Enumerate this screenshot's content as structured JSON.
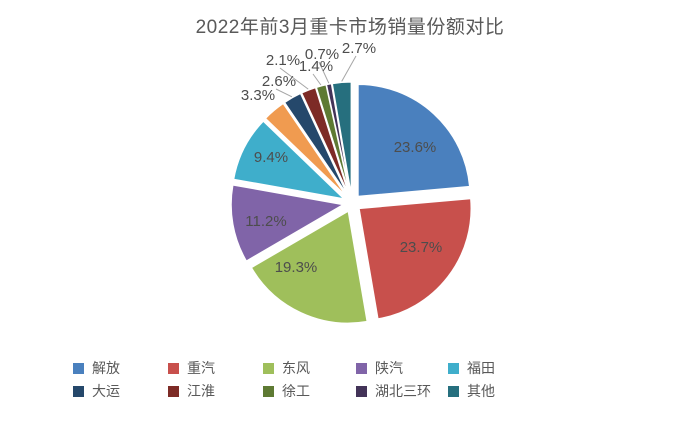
{
  "chart_data": {
    "type": "pie",
    "title": "2022年前3月重卡市场销量份额对比",
    "legend_position": "bottom",
    "total": 100.0,
    "slices": [
      {
        "name": "解放",
        "value": 23.6,
        "label": "23.6%",
        "color": "#4A80BE",
        "label_placement": "inside"
      },
      {
        "name": "重汽",
        "value": 23.7,
        "label": "23.7%",
        "color": "#C8504C",
        "label_placement": "inside"
      },
      {
        "name": "东风",
        "value": 19.3,
        "label": "19.3%",
        "color": "#9FBF5B",
        "label_placement": "inside"
      },
      {
        "name": "陕汽",
        "value": 11.2,
        "label": "11.2%",
        "color": "#8064A8",
        "label_placement": "inside"
      },
      {
        "name": "福田",
        "value": 9.4,
        "label": "9.4%",
        "color": "#3FAECB",
        "label_placement": "inside"
      },
      {
        "name": "",
        "value": 3.3,
        "label": "3.3%",
        "color": "#F09B50",
        "label_placement": "outside"
      },
      {
        "name": "大运",
        "value": 2.6,
        "label": "2.6%",
        "color": "#25486B",
        "label_placement": "outside"
      },
      {
        "name": "江淮",
        "value": 2.1,
        "label": "2.1%",
        "color": "#7D2B26",
        "label_placement": "outside"
      },
      {
        "name": "徐工",
        "value": 1.4,
        "label": "1.4%",
        "color": "#5E7A33",
        "label_placement": "outside"
      },
      {
        "name": "湖北三环",
        "value": 0.7,
        "label": "0.7%",
        "color": "#433358",
        "label_placement": "outside"
      },
      {
        "name": "其他",
        "value": 2.7,
        "label": "2.7%",
        "color": "#266F7E",
        "label_placement": "outside"
      }
    ],
    "legend": [
      {
        "label": "解放",
        "color": "#4A80BE"
      },
      {
        "label": "重汽",
        "color": "#C8504C"
      },
      {
        "label": "东风",
        "color": "#9FBF5B"
      },
      {
        "label": "陕汽",
        "color": "#8064A8"
      },
      {
        "label": "福田",
        "color": "#3FAECB"
      },
      {
        "label": "大运",
        "color": "#25486B"
      },
      {
        "label": "江淮",
        "color": "#7D2B26"
      },
      {
        "label": "徐工",
        "color": "#5E7A33"
      },
      {
        "label": "湖北三环",
        "color": "#433358"
      },
      {
        "label": "其他",
        "color": "#266F7E"
      }
    ],
    "colors": {
      "title_text": "#595959",
      "data_label_text": "#4D4D4D",
      "legend_text": "#595959",
      "leader_line": "#A6A6A6",
      "background": "#FFFFFF"
    }
  }
}
